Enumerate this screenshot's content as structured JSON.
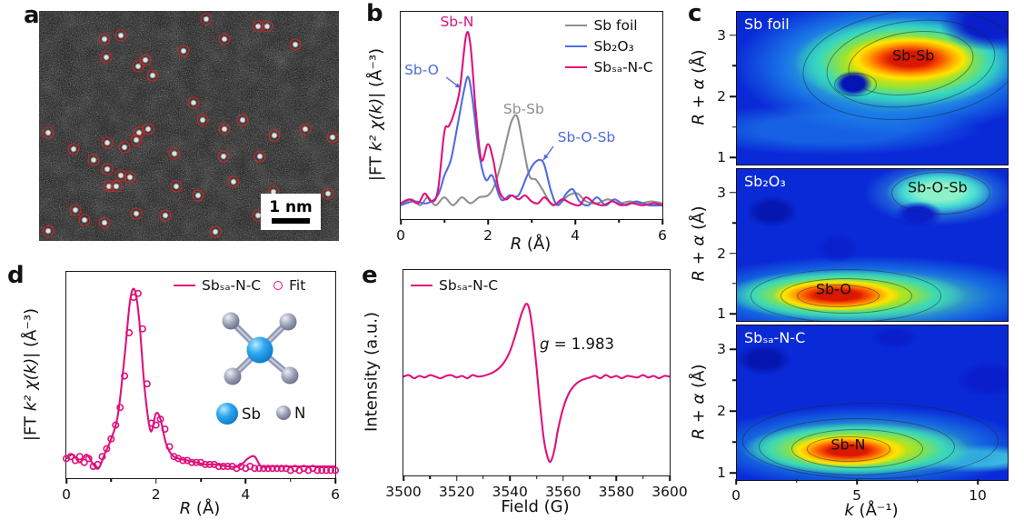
{
  "colors": {
    "magenta": "#e0107c",
    "blue": "#4f6ce0",
    "gray": "#8f8f8f",
    "circle_red": "#dd2222"
  },
  "panels": {
    "a": "a",
    "b": "b",
    "c": "c",
    "d": "d",
    "e": "e"
  },
  "panel_a": {
    "scale_label": "1 nm",
    "atom_circles": [
      [
        21.9,
        12.4
      ],
      [
        27.3,
        10.5
      ],
      [
        22.5,
        20.2
      ],
      [
        33.0,
        24.0
      ],
      [
        35.4,
        21.3
      ],
      [
        37.8,
        27.9
      ],
      [
        48.3,
        17.4
      ],
      [
        55.9,
        3.5
      ],
      [
        61.9,
        12.4
      ],
      [
        73.0,
        6.6
      ],
      [
        76.0,
        6.6
      ],
      [
        85.6,
        14.7
      ],
      [
        51.4,
        39.9
      ],
      [
        54.4,
        47.3
      ],
      [
        61.9,
        51.2
      ],
      [
        67.9,
        47.3
      ],
      [
        33.3,
        53.1
      ],
      [
        36.3,
        51.2
      ],
      [
        32.4,
        56.2
      ],
      [
        28.5,
        59.3
      ],
      [
        22.8,
        57.4
      ],
      [
        3.0,
        53.1
      ],
      [
        11.4,
        60.1
      ],
      [
        18.3,
        64.7
      ],
      [
        45.0,
        62.0
      ],
      [
        61.6,
        63.2
      ],
      [
        73.6,
        63.2
      ],
      [
        78.4,
        54.3
      ],
      [
        88.9,
        51.2
      ],
      [
        22.8,
        68.6
      ],
      [
        27.3,
        71.7
      ],
      [
        30.3,
        72.5
      ],
      [
        23.4,
        76.4
      ],
      [
        25.8,
        76.4
      ],
      [
        45.9,
        76.4
      ],
      [
        52.9,
        80.2
      ],
      [
        64.9,
        74.4
      ],
      [
        78.1,
        78.7
      ],
      [
        96.4,
        79.5
      ],
      [
        12.0,
        86.4
      ],
      [
        15.3,
        91.1
      ],
      [
        21.9,
        92.2
      ],
      [
        32.4,
        88.0
      ],
      [
        42.0,
        89.1
      ],
      [
        3.0,
        95.7
      ],
      [
        58.9,
        96.1
      ],
      [
        73.0,
        89.1
      ],
      [
        85.0,
        87.2
      ],
      [
        97.9,
        55.0
      ]
    ]
  },
  "axis_labels": {
    "r_sym": "R",
    "r_rest": " (Å)",
    "k_sym": "k",
    "k_rest": " (Å⁻¹)",
    "ralpha_sym": "R + α",
    "ralpha_rest": " (Å)",
    "ft_p1": "|FT ",
    "ft_p2": "k² χ(k)",
    "ft_p3": "| (Å⁻³)",
    "intensity": "Intensity (a.u.)",
    "field": "Field (G)"
  },
  "epr_extra": {
    "g_sym": "g",
    "g_rest": " = 1.983"
  },
  "mol_legend": {
    "sb": "Sb",
    "n": "N"
  },
  "chart_data": [
    {
      "id": "exafs",
      "type": "line",
      "xlabel": "R (Å)",
      "ylabel": "|FT k² χ(k)| (Å⁻³)",
      "xlim": [
        0,
        6
      ],
      "ylim": [
        0,
        1.05
      ],
      "xticks": [
        0,
        2,
        4,
        6
      ],
      "xticks_minor": [
        1,
        3,
        5
      ],
      "legend_position": "top-right",
      "grid": false,
      "series": [
        {
          "name": "Sb foil",
          "color": "#8f8f8f",
          "smooth": true,
          "x": [
            0,
            0.25,
            0.45,
            0.62,
            0.8,
            1.0,
            1.2,
            1.4,
            1.6,
            1.8,
            2.0,
            2.15,
            2.3,
            2.45,
            2.55,
            2.67,
            2.8,
            2.95,
            3.1,
            3.25,
            3.45,
            3.65,
            3.85,
            4.05,
            4.25,
            4.5,
            4.75,
            5.0,
            5.25,
            5.5,
            5.75,
            6.0
          ],
          "y": [
            0.07,
            0.1,
            0.07,
            0.11,
            0.07,
            0.11,
            0.07,
            0.11,
            0.08,
            0.11,
            0.12,
            0.17,
            0.28,
            0.42,
            0.5,
            0.52,
            0.38,
            0.22,
            0.2,
            0.15,
            0.08,
            0.08,
            0.12,
            0.13,
            0.09,
            0.08,
            0.1,
            0.08,
            0.09,
            0.08,
            0.09,
            0.08
          ]
        },
        {
          "name": "Sb₂O₃",
          "color": "#4f6ce0",
          "smooth": true,
          "x": [
            0,
            0.3,
            0.6,
            0.85,
            1.0,
            1.15,
            1.3,
            1.45,
            1.55,
            1.65,
            1.8,
            1.95,
            2.1,
            2.3,
            2.5,
            2.7,
            2.9,
            3.05,
            3.2,
            3.3,
            3.45,
            3.6,
            3.8,
            3.95,
            4.1,
            4.3,
            4.5,
            4.7,
            4.9,
            5.15,
            5.4,
            5.7,
            6.0
          ],
          "y": [
            0.07,
            0.09,
            0.08,
            0.12,
            0.22,
            0.3,
            0.47,
            0.65,
            0.72,
            0.6,
            0.33,
            0.2,
            0.22,
            0.1,
            0.12,
            0.12,
            0.22,
            0.28,
            0.3,
            0.27,
            0.14,
            0.07,
            0.13,
            0.15,
            0.09,
            0.07,
            0.11,
            0.07,
            0.1,
            0.07,
            0.09,
            0.07,
            0.07
          ]
        },
        {
          "name": "Sbₛₐ-N-C",
          "color": "#e0107c",
          "smooth": true,
          "x": [
            0,
            0.2,
            0.4,
            0.55,
            0.7,
            0.85,
            1.0,
            1.1,
            1.2,
            1.35,
            1.5,
            1.6,
            1.72,
            1.85,
            2.0,
            2.12,
            2.25,
            2.4,
            2.55,
            2.7,
            2.85,
            3.0,
            3.15,
            3.3,
            3.5,
            3.7,
            3.9,
            4.1,
            4.25,
            4.45,
            4.65,
            4.85,
            5.05,
            5.3,
            5.55,
            5.8,
            6.0
          ],
          "y": [
            0.08,
            0.1,
            0.08,
            0.13,
            0.09,
            0.14,
            0.44,
            0.47,
            0.52,
            0.65,
            0.93,
            0.88,
            0.55,
            0.3,
            0.38,
            0.3,
            0.15,
            0.1,
            0.12,
            0.1,
            0.12,
            0.09,
            0.08,
            0.11,
            0.07,
            0.1,
            0.08,
            0.07,
            0.11,
            0.08,
            0.07,
            0.09,
            0.07,
            0.08,
            0.07,
            0.08,
            0.07
          ]
        }
      ],
      "annotations": [
        {
          "text": "Sb-N",
          "color": "magenta",
          "x": 21.5,
          "y": 1.0
        },
        {
          "text": "Sb-O",
          "color": "blue",
          "x": 8.0,
          "y": 24.0,
          "arrow": [
            50,
            72,
            66,
            84
          ]
        },
        {
          "text": "Sb-Sb",
          "color": "gray",
          "x": 47.0,
          "y": 43.0
        },
        {
          "text": "Sb-O-Sb",
          "color": "blue",
          "x": 71.0,
          "y": 56.5,
          "arrow": [
            168,
            148,
            157,
            163
          ]
        }
      ]
    },
    {
      "id": "exafs-fit",
      "type": "line",
      "xlabel": "R (Å)",
      "ylabel": "|FT k² χ(k)| (Å⁻³)",
      "xlim": [
        0,
        6
      ],
      "ylim": [
        0,
        1.05
      ],
      "xticks": [
        0,
        2,
        4,
        6
      ],
      "xticks_minor": [
        1,
        3,
        5
      ],
      "legend_position": "top-center",
      "grid": false,
      "series": [
        {
          "name": "Sbₛₐ-N-C",
          "color": "#e0107c",
          "smooth": true,
          "x": [
            0,
            0.15,
            0.3,
            0.45,
            0.6,
            0.72,
            0.85,
            1.0,
            1.15,
            1.3,
            1.42,
            1.52,
            1.62,
            1.75,
            1.88,
            2.0,
            2.1,
            2.22,
            2.35,
            2.5,
            2.7,
            2.9,
            3.1,
            3.35,
            3.6,
            3.85,
            4.05,
            4.2,
            4.35,
            4.6,
            4.9,
            5.2,
            5.5,
            5.75,
            6.0
          ],
          "y": [
            0.1,
            0.12,
            0.08,
            0.12,
            0.07,
            0.05,
            0.12,
            0.2,
            0.32,
            0.62,
            0.9,
            0.96,
            0.82,
            0.45,
            0.24,
            0.33,
            0.3,
            0.18,
            0.12,
            0.1,
            0.09,
            0.08,
            0.07,
            0.07,
            0.06,
            0.06,
            0.1,
            0.11,
            0.06,
            0.06,
            0.06,
            0.06,
            0.06,
            0.06,
            0.06
          ]
        },
        {
          "name": "Fit",
          "color": "#e0107c",
          "scatter": true,
          "x": [
            0,
            0.1,
            0.2,
            0.3,
            0.4,
            0.5,
            0.6,
            0.7,
            0.8,
            0.9,
            1.0,
            1.1,
            1.2,
            1.3,
            1.4,
            1.5,
            1.6,
            1.7,
            1.8,
            1.9,
            2.0,
            2.1,
            2.2,
            2.3,
            2.4,
            2.5,
            2.6,
            2.7,
            2.8,
            2.9,
            3.0,
            3.1,
            3.2,
            3.3,
            3.4,
            3.5,
            3.6,
            3.7,
            3.8,
            3.9,
            4.0,
            4.1,
            4.2,
            4.3,
            4.4,
            4.5,
            4.6,
            4.7,
            4.8,
            4.9,
            5.0,
            5.1,
            5.2,
            5.3,
            5.4,
            5.5,
            5.6,
            5.7,
            5.8,
            5.9,
            6.0
          ],
          "y": [
            0.1,
            0.11,
            0.09,
            0.11,
            0.08,
            0.1,
            0.06,
            0.07,
            0.11,
            0.15,
            0.2,
            0.27,
            0.36,
            0.52,
            0.74,
            0.92,
            0.94,
            0.76,
            0.48,
            0.28,
            0.27,
            0.3,
            0.25,
            0.16,
            0.11,
            0.1,
            0.09,
            0.09,
            0.08,
            0.08,
            0.08,
            0.07,
            0.07,
            0.07,
            0.06,
            0.06,
            0.06,
            0.06,
            0.05,
            0.06,
            0.05,
            0.06,
            0.05,
            0.05,
            0.05,
            0.05,
            0.05,
            0.05,
            0.05,
            0.05,
            0.04,
            0.05,
            0.04,
            0.05,
            0.04,
            0.05,
            0.04,
            0.04,
            0.04,
            0.04,
            0.04
          ]
        }
      ]
    },
    {
      "id": "epr",
      "type": "line",
      "xlabel": "Field (G)",
      "ylabel": "Intensity (a.u.)",
      "xlim": [
        3500,
        3600
      ],
      "ylim": [
        -1.25,
        1.35
      ],
      "xticks": [
        3500,
        3520,
        3540,
        3560,
        3580,
        3600
      ],
      "xticks_minor": [
        3510,
        3530,
        3550,
        3570,
        3590
      ],
      "annotation_g": "g = 1.983",
      "legend_position": "top-left",
      "grid": false,
      "series": [
        {
          "name": "Sbₛₐ-N-C",
          "color": "#e0107c",
          "smooth": true,
          "x": [
            3500,
            3502,
            3504,
            3506,
            3508,
            3510,
            3512,
            3514,
            3516,
            3518,
            3520,
            3522,
            3524,
            3526,
            3528,
            3530,
            3532,
            3534,
            3536,
            3538,
            3540,
            3542,
            3544,
            3545,
            3546,
            3547,
            3548,
            3549,
            3550,
            3551,
            3552,
            3553,
            3554,
            3555,
            3556,
            3557,
            3558,
            3560,
            3562,
            3564,
            3566,
            3568,
            3570,
            3572,
            3574,
            3576,
            3578,
            3580,
            3582,
            3584,
            3586,
            3588,
            3590,
            3592,
            3594,
            3596,
            3598,
            3600
          ],
          "y": [
            0.0,
            0.02,
            -0.02,
            0.01,
            -0.01,
            0.02,
            0.0,
            -0.02,
            0.01,
            0.02,
            -0.01,
            0.01,
            -0.02,
            0.02,
            0.0,
            0.01,
            0.03,
            0.06,
            0.11,
            0.19,
            0.32,
            0.52,
            0.76,
            0.85,
            0.92,
            0.89,
            0.72,
            0.45,
            0.12,
            -0.25,
            -0.58,
            -0.85,
            -1.0,
            -1.08,
            -1.02,
            -0.88,
            -0.68,
            -0.4,
            -0.22,
            -0.12,
            -0.06,
            -0.03,
            -0.01,
            0.01,
            -0.02,
            0.02,
            -0.01,
            0.01,
            -0.02,
            0.01,
            0.0,
            -0.01,
            0.02,
            -0.01,
            0.01,
            -0.02,
            0.01,
            0.0
          ]
        }
      ]
    },
    {
      "id": "wt-sbfoil",
      "type": "heatmap",
      "label": "Sb foil",
      "colormap": "jet",
      "xlim": [
        0,
        11.2
      ],
      "ylim": [
        0.9,
        3.4
      ],
      "yticks": [
        1,
        2,
        3
      ],
      "yticks_minor": [
        1.5,
        2.5
      ],
      "peaks": [
        {
          "text": "Sb-Sb",
          "k": 7.3,
          "r": 2.68
        }
      ]
    },
    {
      "id": "wt-sb2o3",
      "type": "heatmap",
      "label": "Sb₂O₃",
      "colormap": "jet",
      "xlim": [
        0,
        11.2
      ],
      "ylim": [
        0.9,
        3.4
      ],
      "yticks": [
        1,
        2,
        3
      ],
      "yticks_minor": [
        1.5,
        2.5
      ],
      "peaks": [
        {
          "text": "Sb-O",
          "k": 4.0,
          "r": 1.42
        },
        {
          "text": "Sb-O-Sb",
          "k": 8.3,
          "r": 3.1
        }
      ]
    },
    {
      "id": "wt-sbsa",
      "type": "heatmap",
      "label": "Sbₛₐ-N-C",
      "colormap": "jet",
      "xlim": [
        0,
        11.2
      ],
      "ylim": [
        0.9,
        3.4
      ],
      "yticks": [
        1,
        2,
        3
      ],
      "yticks_minor": [
        1.5,
        2.5
      ],
      "xticks": [
        0,
        5,
        10
      ],
      "xticks_minor": [
        2.5,
        7.5
      ],
      "peaks": [
        {
          "text": "Sb-N",
          "k": 4.6,
          "r": 1.48
        }
      ]
    }
  ]
}
